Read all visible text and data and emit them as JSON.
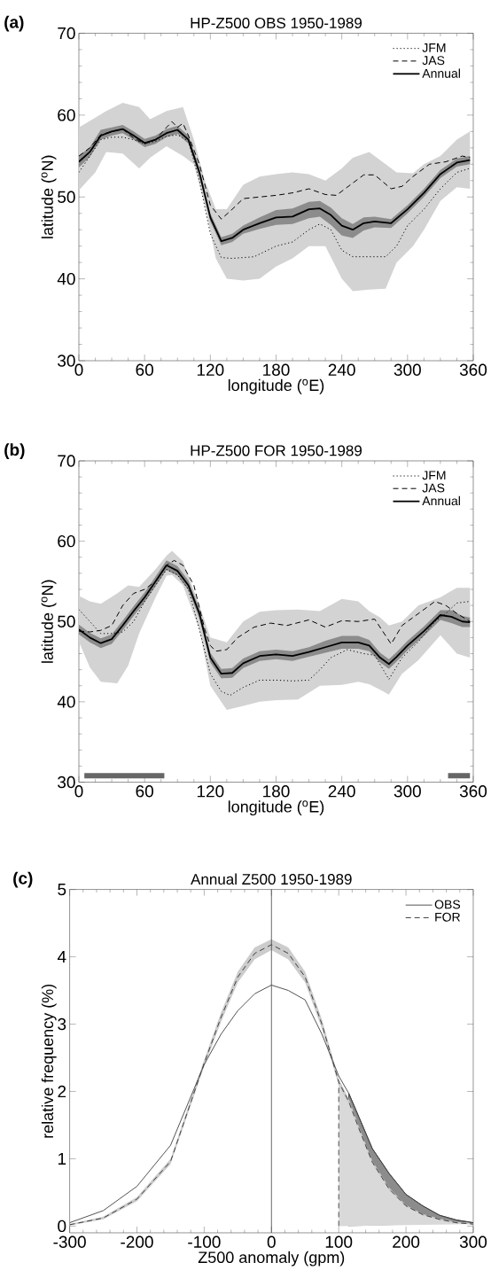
{
  "chart_data": [
    {
      "type": "line",
      "title": "HP-Z500 OBS 1950-1989",
      "annotations": [
        "(a)"
      ],
      "xlabel": "longitude ($^{o}$E)",
      "ylabel": "latitude ($^{o}$N)",
      "xlim": [
        0,
        360
      ],
      "xticks": [
        0,
        60,
        120,
        180,
        240,
        300,
        360
      ],
      "ylim": [
        30,
        70
      ],
      "yticks": [
        30,
        40,
        50,
        60,
        70
      ],
      "legend": "top right",
      "series": [
        {
          "color": "#d3d3d3",
          "x": [
            0,
            15,
            25,
            40,
            55,
            65,
            80,
            95,
            105,
            115,
            125,
            135,
            150,
            165,
            180,
            195,
            210,
            225,
            240,
            250,
            265,
            280,
            290,
            305,
            315,
            330,
            345,
            357
          ],
          "values": [
            null,
            null,
            null,
            null,
            null,
            null,
            null,
            null,
            null,
            null,
            null,
            null,
            null,
            null,
            null,
            null,
            null,
            null,
            null,
            null,
            null,
            null,
            null,
            null,
            null,
            null,
            null,
            null
          ],
          "lower": [
            50.8,
            53,
            55.5,
            55.3,
            53.5,
            54.8,
            56.2,
            55,
            54,
            49,
            42.5,
            40,
            39.8,
            40,
            41.5,
            42.5,
            44,
            44,
            40,
            38.5,
            38.7,
            38.8,
            42,
            44,
            46,
            49.5,
            51.2,
            51
          ],
          "upper": [
            58.5,
            59.7,
            60.5,
            61.5,
            61,
            59.5,
            60.5,
            61,
            57,
            52,
            48.5,
            48.5,
            51.5,
            52.5,
            52.8,
            53,
            52.8,
            52,
            53.5,
            54.8,
            55.5,
            54,
            53,
            52.9,
            54,
            55,
            57,
            58
          ]
        },
        {
          "color": "#8c8c8c",
          "x": [
            0,
            10,
            20,
            30,
            40,
            50,
            60,
            70,
            80,
            90,
            100,
            110,
            120,
            130,
            140,
            150,
            165,
            180,
            195,
            210,
            220,
            230,
            240,
            250,
            260,
            270,
            285,
            300,
            315,
            330,
            345,
            357
          ],
          "values": [
            null,
            null,
            null,
            null,
            null,
            null,
            null,
            null,
            null,
            null,
            null,
            null,
            null,
            null,
            null,
            null,
            null,
            null,
            null,
            null,
            null,
            null,
            null,
            null,
            null,
            null,
            null,
            null,
            null,
            null,
            null,
            null
          ],
          "lower": [
            53.6,
            54.9,
            57,
            57.5,
            57.8,
            57,
            56.1,
            56.5,
            57.3,
            57.7,
            56.5,
            52.5,
            47,
            44.1,
            44.5,
            45.5,
            46.1,
            46.6,
            46.7,
            47.4,
            47.6,
            46.6,
            45.3,
            45,
            45.9,
            46.3,
            46.2,
            48,
            50,
            52.3,
            53.7,
            54
          ],
          "upper": [
            55,
            56.1,
            58.2,
            58.5,
            58.8,
            58,
            57.1,
            57.5,
            58.3,
            58.7,
            57.5,
            53.5,
            48,
            45.1,
            45.5,
            46.5,
            47.5,
            48.4,
            48.6,
            49.4,
            49.5,
            48.7,
            47.4,
            46.7,
            47.5,
            47.6,
            47.3,
            49,
            51,
            53.3,
            54.7,
            55
          ]
        },
        {
          "name": "JFM",
          "color": "#000000",
          "line_style": "dotted",
          "x": [
            0,
            10,
            20,
            30,
            40,
            50,
            60,
            70,
            80,
            90,
            100,
            110,
            120,
            130,
            140,
            160,
            180,
            195,
            210,
            220,
            230,
            240,
            250,
            280,
            290,
            300,
            315,
            330,
            345,
            357
          ],
          "values": [
            53,
            55,
            57,
            57.3,
            57.3,
            57,
            56.5,
            56.8,
            57.4,
            57.6,
            56.8,
            52,
            45.5,
            42.6,
            42.5,
            42.7,
            44,
            44.5,
            46,
            46.7,
            46,
            43.5,
            42.7,
            42.7,
            44,
            46.5,
            48.5,
            51,
            53,
            53.5
          ]
        },
        {
          "name": "JAS",
          "color": "#000000",
          "line_style": "dashed",
          "x": [
            0,
            10,
            20,
            30,
            40,
            50,
            60,
            70,
            80,
            85,
            90,
            95,
            100,
            110,
            120,
            130,
            140,
            150,
            165,
            180,
            195,
            210,
            225,
            235,
            245,
            260,
            270,
            285,
            295,
            305,
            320,
            335,
            350,
            357
          ],
          "values": [
            55,
            56,
            57.6,
            58,
            58.3,
            57.2,
            56.5,
            57,
            58.5,
            59.2,
            58.5,
            59,
            57.5,
            54,
            49,
            47.3,
            48.5,
            49.8,
            50,
            50.2,
            50.5,
            51,
            50.3,
            50.2,
            51.2,
            52.7,
            52.7,
            51,
            51.3,
            52.5,
            54,
            54.3,
            55,
            54.8
          ]
        },
        {
          "name": "Annual",
          "color": "#000000",
          "line_style": "solid",
          "x": [
            0,
            10,
            20,
            30,
            40,
            50,
            60,
            70,
            80,
            90,
            100,
            110,
            120,
            130,
            140,
            150,
            165,
            180,
            195,
            210,
            220,
            230,
            240,
            250,
            260,
            270,
            285,
            300,
            315,
            330,
            345,
            357
          ],
          "values": [
            54.3,
            55.5,
            57.5,
            58,
            58.3,
            57.5,
            56.6,
            57,
            57.8,
            58.2,
            57,
            53,
            47.5,
            44.6,
            45,
            46,
            46.8,
            47.5,
            47.6,
            48.5,
            48.6,
            47.8,
            46.5,
            46,
            46.8,
            47,
            46.8,
            48.5,
            50.5,
            52.8,
            54.2,
            54.5
          ]
        }
      ]
    },
    {
      "type": "line",
      "title": "HP-Z500 FOR 1950-1989",
      "annotations": [
        "(b)"
      ],
      "xlabel": "longitude ($^{o}$E)",
      "ylabel": "latitude ($^{o}$N)",
      "xlim": [
        0,
        360
      ],
      "xticks": [
        0,
        60,
        120,
        180,
        240,
        300,
        360
      ],
      "ylim": [
        30,
        70
      ],
      "yticks": [
        30,
        40,
        50,
        60,
        70
      ],
      "legend": "top right",
      "series": [
        {
          "color": "#d3d3d3",
          "x": [
            0,
            10,
            20,
            35,
            45,
            55,
            70,
            80,
            85,
            95,
            110,
            120,
            135,
            150,
            165,
            180,
            200,
            220,
            240,
            255,
            265,
            275,
            283,
            295,
            310,
            330,
            345,
            357
          ],
          "values": [
            null,
            null,
            null,
            null,
            null,
            null,
            null,
            null,
            null,
            null,
            null,
            null,
            null,
            null,
            null,
            null,
            null,
            null,
            null,
            null,
            null,
            null,
            null,
            null,
            null,
            null,
            null,
            null
          ],
          "lower": [
            47.5,
            44.3,
            42.5,
            42.3,
            44.5,
            48.5,
            53,
            55.7,
            55.8,
            54.5,
            49,
            42,
            39,
            39.5,
            40,
            40.2,
            40.3,
            42,
            42.1,
            42.5,
            42.2,
            41.5,
            40.9,
            43.5,
            45.2,
            48.3,
            46,
            45.5
          ],
          "upper": [
            53.2,
            52.5,
            52.2,
            53.5,
            54.5,
            54.3,
            56.5,
            58.2,
            58.8,
            57.5,
            52,
            48,
            47.4,
            50,
            51.2,
            51.4,
            51.5,
            51.3,
            52.8,
            52.5,
            51.3,
            50.5,
            49.5,
            50,
            52,
            53,
            54.2,
            54.2
          ]
        },
        {
          "color": "#8c8c8c",
          "x": [
            0,
            10,
            20,
            30,
            40,
            50,
            60,
            70,
            80,
            90,
            100,
            110,
            120,
            130,
            140,
            150,
            165,
            180,
            195,
            210,
            225,
            240,
            255,
            265,
            275,
            283,
            290,
            300,
            315,
            330,
            340,
            350,
            357
          ],
          "values": [
            null,
            null,
            null,
            null,
            null,
            null,
            null,
            null,
            null,
            null,
            null,
            null,
            null,
            null,
            null,
            null,
            null,
            null,
            null,
            null,
            null,
            null,
            null,
            null,
            null,
            null,
            null,
            null,
            null,
            null,
            null,
            null,
            null
          ],
          "lower": [
            48.4,
            47.4,
            46.7,
            47.2,
            48.9,
            50.7,
            52.4,
            54.4,
            56.4,
            55.7,
            53.9,
            50.4,
            44.9,
            42.9,
            43,
            44.2,
            45.1,
            45.3,
            45.1,
            45.6,
            46.1,
            46.6,
            46.6,
            46.3,
            44.9,
            44.1,
            45,
            46.4,
            48.2,
            50.2,
            49.8,
            49.3,
            49.3
          ],
          "upper": [
            49.6,
            48.6,
            47.9,
            48.4,
            50.1,
            51.9,
            53.6,
            55.6,
            57.6,
            56.9,
            55.1,
            51.6,
            46.1,
            44.1,
            44.2,
            45.4,
            46.3,
            46.5,
            46.3,
            46.8,
            47.6,
            48.2,
            48.2,
            47.7,
            46.1,
            45.3,
            46.2,
            47.6,
            49.4,
            51.4,
            51.4,
            50.7,
            50.5
          ]
        },
        {
          "name": "JFM",
          "color": "#000000",
          "line_style": "dotted",
          "x": [
            0,
            10,
            20,
            30,
            40,
            50,
            60,
            70,
            80,
            90,
            100,
            110,
            120,
            130,
            138,
            150,
            165,
            180,
            195,
            210,
            220,
            230,
            245,
            260,
            270,
            283,
            295,
            310,
            325,
            335,
            345,
            357
          ],
          "values": [
            51.5,
            50,
            48.5,
            48.5,
            48.7,
            50,
            52.5,
            54.5,
            56.5,
            55.8,
            54,
            49,
            43.5,
            41.3,
            40.8,
            41.8,
            42.7,
            42.7,
            42.6,
            42.7,
            44,
            45.5,
            46.5,
            46,
            45.8,
            42.8,
            45.5,
            47.5,
            50,
            51,
            52.3,
            52.5
          ]
        },
        {
          "name": "JAS",
          "color": "#000000",
          "line_style": "dashed",
          "x": [
            0,
            10,
            20,
            30,
            40,
            50,
            60,
            70,
            80,
            87,
            95,
            105,
            115,
            120,
            125,
            135,
            145,
            160,
            175,
            190,
            210,
            225,
            240,
            255,
            270,
            285,
            295,
            310,
            325,
            335,
            345,
            357
          ],
          "values": [
            48.8,
            48.7,
            48.9,
            49.5,
            52,
            53.5,
            54,
            55,
            57,
            57.6,
            57,
            54.5,
            49,
            47,
            46.3,
            46.5,
            48,
            49.3,
            49.8,
            49.5,
            50.2,
            49.3,
            50.1,
            50,
            50.3,
            47.2,
            49.5,
            51,
            52.5,
            52,
            51,
            50
          ]
        },
        {
          "name": "Annual",
          "color": "#000000",
          "line_style": "solid",
          "x": [
            0,
            10,
            20,
            30,
            40,
            50,
            60,
            70,
            80,
            90,
            100,
            110,
            120,
            130,
            140,
            150,
            165,
            180,
            195,
            210,
            225,
            240,
            255,
            265,
            275,
            283,
            290,
            300,
            315,
            330,
            340,
            350,
            357
          ],
          "values": [
            49,
            48,
            47.3,
            47.8,
            49.5,
            51.3,
            53,
            55,
            57,
            56.3,
            54.5,
            51,
            45.5,
            43.5,
            43.6,
            44.8,
            45.7,
            45.9,
            45.7,
            46.2,
            46.8,
            47.4,
            47.4,
            47,
            45.5,
            44.7,
            45.6,
            47,
            48.8,
            50.8,
            50.6,
            50,
            49.9
          ]
        },
        {
          "color": "#666666",
          "line_style": "solid",
          "x": [
            5,
            78
          ],
          "values": [
            30.8,
            30.8
          ]
        },
        {
          "color": "#666666",
          "line_style": "solid",
          "x": [
            337,
            357
          ],
          "values": [
            30.8,
            30.8
          ]
        }
      ]
    },
    {
      "type": "line",
      "title": "Annual Z500 1950-1989",
      "annotations": [
        "(c)"
      ],
      "xlabel": "Z500 anomaly (gpm)",
      "ylabel": "relative frequency (%)",
      "xlim": [
        -300,
        300
      ],
      "xticks": [
        -300,
        -200,
        -100,
        0,
        100,
        200,
        300
      ],
      "ylim": [
        -0.1,
        5
      ],
      "yticks": [
        0,
        1,
        2,
        3,
        4,
        5
      ],
      "legend": "top right",
      "ref_lines": [
        {
          "axis": "x",
          "value": 0,
          "color": "#404040"
        }
      ],
      "series": [
        {
          "color": "#cccccc",
          "x": [
            -300,
            -250,
            -200,
            -150,
            -100,
            -75,
            -50,
            -25,
            0,
            25,
            50,
            75,
            100,
            115,
            130,
            150,
            175,
            200,
            225,
            250,
            275,
            300
          ],
          "values": [
            null,
            null,
            null,
            null,
            null,
            null,
            null,
            null,
            null,
            null,
            null,
            null,
            null,
            null,
            null,
            null,
            null,
            null,
            null,
            null,
            null,
            null
          ],
          "lower": [
            0.01,
            0.1,
            0.37,
            0.92,
            2.37,
            3.03,
            3.62,
            3.96,
            4.1,
            3.96,
            3.62,
            2.93,
            2.09,
            1.81,
            1.42,
            0.93,
            0.53,
            0.29,
            0.16,
            0.09,
            0.04,
            0.02
          ],
          "upper": [
            0.03,
            0.14,
            0.43,
            1.0,
            2.47,
            3.17,
            3.78,
            4.14,
            4.26,
            4.14,
            3.78,
            3.07,
            2.19,
            1.89,
            1.48,
            0.97,
            0.57,
            0.31,
            0.18,
            0.11,
            0.06,
            0.04
          ]
        },
        {
          "type": "area",
          "color": "#8c8c8c",
          "line_style": "solid",
          "x": [
            115,
            130,
            150,
            175,
            200,
            225,
            250,
            275,
            300
          ],
          "values": [
            1.97,
            1.62,
            1.15,
            0.78,
            0.47,
            0.3,
            0.16,
            0.09,
            0.05
          ]
        },
        {
          "type": "area",
          "color": "#d9d9d9",
          "line_style": "dashed",
          "x": [
            100,
            115,
            130,
            150,
            175,
            200,
            225,
            250,
            275,
            300
          ],
          "values": [
            2.14,
            1.85,
            1.45,
            0.95,
            0.55,
            0.3,
            0.17,
            0.1,
            0.05,
            0.03
          ]
        },
        {
          "name": "OBS",
          "color": "#404040",
          "line_style": "solid",
          "x": [
            -300,
            -250,
            -200,
            -150,
            -100,
            -75,
            -50,
            -25,
            0,
            25,
            50,
            75,
            100,
            115,
            130,
            150,
            175,
            200,
            225,
            250,
            275,
            300
          ],
          "values": [
            0.05,
            0.23,
            0.59,
            1.2,
            2.4,
            2.85,
            3.2,
            3.45,
            3.58,
            3.5,
            3.36,
            2.85,
            2.23,
            1.97,
            1.62,
            1.15,
            0.78,
            0.47,
            0.3,
            0.16,
            0.09,
            0.05
          ]
        },
        {
          "name": "FOR",
          "color": "#404040",
          "line_style": "dashed",
          "x": [
            -300,
            -250,
            -200,
            -150,
            -100,
            -75,
            -50,
            -25,
            0,
            25,
            50,
            75,
            100,
            115,
            130,
            150,
            175,
            200,
            225,
            250,
            275,
            300
          ],
          "values": [
            0.02,
            0.12,
            0.4,
            0.96,
            2.42,
            3.1,
            3.7,
            4.05,
            4.18,
            4.05,
            3.7,
            3.0,
            2.14,
            1.85,
            1.45,
            0.95,
            0.55,
            0.3,
            0.17,
            0.1,
            0.05,
            0.03
          ]
        }
      ]
    }
  ]
}
